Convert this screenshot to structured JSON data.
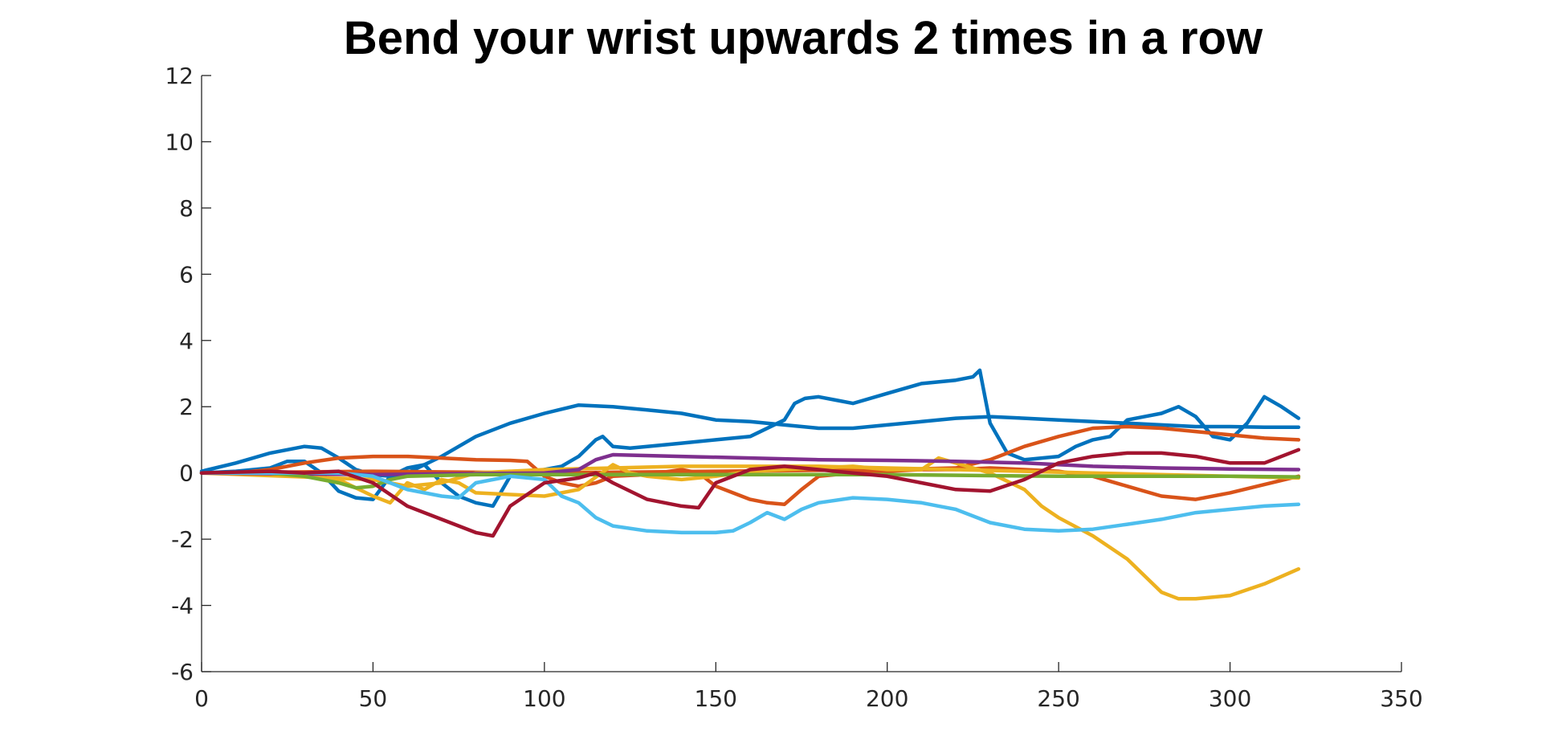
{
  "chart_data": {
    "type": "line",
    "title": "Bend your wrist upwards 2 times in a row",
    "xlabel": "",
    "ylabel": "",
    "xlim": [
      0,
      350
    ],
    "ylim": [
      -6,
      12
    ],
    "xticks": [
      0,
      50,
      100,
      150,
      200,
      250,
      300,
      350
    ],
    "yticks": [
      -6,
      -4,
      -2,
      0,
      2,
      4,
      6,
      8,
      10,
      12
    ],
    "grid": false,
    "legend": "none",
    "series": [
      {
        "color": "#0072BD",
        "x": [
          0,
          10,
          20,
          30,
          35,
          40,
          45,
          50,
          55,
          60,
          70,
          80,
          90,
          100,
          110,
          120,
          130,
          140,
          150,
          160,
          170,
          180,
          190,
          200,
          210,
          220,
          230,
          240,
          250,
          260,
          270,
          280,
          290,
          300,
          310,
          320
        ],
        "y": [
          0.05,
          0.3,
          0.6,
          0.8,
          0.75,
          0.45,
          0.1,
          -0.05,
          -0.1,
          0.0,
          0.5,
          1.1,
          1.5,
          1.8,
          2.05,
          2.0,
          1.9,
          1.8,
          1.6,
          1.55,
          1.45,
          1.35,
          1.35,
          1.45,
          1.55,
          1.65,
          1.7,
          1.65,
          1.6,
          1.55,
          1.5,
          1.45,
          1.4,
          1.4,
          1.38,
          1.38
        ]
      },
      {
        "color": "#0072BD",
        "x": [
          0,
          10,
          20,
          25,
          30,
          35,
          40,
          45,
          50,
          55,
          60,
          65,
          70,
          75,
          80,
          85,
          90,
          95,
          100,
          105,
          110,
          115,
          117,
          120,
          125,
          130,
          140,
          150,
          160,
          170,
          173,
          176,
          180,
          185,
          190,
          200,
          210,
          220,
          225,
          227,
          230,
          235,
          240,
          250,
          255,
          260,
          265,
          270,
          275,
          280,
          285,
          290,
          295,
          300,
          305,
          310,
          315,
          320
        ],
        "y": [
          0.0,
          0.05,
          0.15,
          0.35,
          0.35,
          0.0,
          -0.55,
          -0.75,
          -0.8,
          -0.1,
          0.15,
          0.25,
          -0.3,
          -0.7,
          -0.9,
          -1.0,
          -0.1,
          0.0,
          0.1,
          0.2,
          0.5,
          1.0,
          1.1,
          0.8,
          0.75,
          0.8,
          0.9,
          1.0,
          1.1,
          1.6,
          2.1,
          2.25,
          2.3,
          2.2,
          2.1,
          2.4,
          2.7,
          2.8,
          2.9,
          3.1,
          1.5,
          0.6,
          0.4,
          0.5,
          0.8,
          1.0,
          1.1,
          1.6,
          1.7,
          1.8,
          2.0,
          1.7,
          1.1,
          1.0,
          1.5,
          2.3,
          2.0,
          1.65
        ]
      },
      {
        "color": "#D95319",
        "x": [
          0,
          10,
          20,
          30,
          40,
          50,
          60,
          70,
          80,
          90,
          95,
          100,
          105,
          110,
          115,
          120,
          130,
          140,
          145,
          150,
          155,
          160,
          165,
          170,
          175,
          180,
          190,
          200,
          210,
          220,
          230,
          240,
          250,
          260,
          270,
          280,
          290,
          300,
          310,
          320
        ],
        "y": [
          0.0,
          0.0,
          0.1,
          0.3,
          0.45,
          0.5,
          0.5,
          0.45,
          0.4,
          0.38,
          0.35,
          -0.1,
          -0.3,
          -0.4,
          -0.3,
          -0.1,
          -0.05,
          0.1,
          0.0,
          -0.4,
          -0.6,
          -0.8,
          -0.9,
          -0.95,
          -0.5,
          -0.1,
          0.0,
          0.05,
          0.1,
          0.1,
          0.15,
          0.1,
          0.05,
          -0.1,
          -0.4,
          -0.7,
          -0.8,
          -0.6,
          -0.35,
          -0.1
        ]
      },
      {
        "color": "#D95319",
        "x": [
          0,
          50,
          100,
          150,
          200,
          220,
          230,
          240,
          250,
          260,
          270,
          280,
          290,
          300,
          310,
          320
        ],
        "y": [
          0.0,
          0.05,
          0.0,
          0.05,
          0.1,
          0.15,
          0.4,
          0.8,
          1.1,
          1.35,
          1.4,
          1.35,
          1.25,
          1.15,
          1.05,
          1.0
        ]
      },
      {
        "color": "#EDB120",
        "x": [
          0,
          10,
          20,
          30,
          40,
          50,
          55,
          60,
          65,
          70,
          75,
          80,
          90,
          100,
          110,
          120,
          125,
          130,
          140,
          150,
          160,
          170,
          180,
          190,
          200,
          210,
          215,
          220,
          230,
          240,
          245,
          250,
          260,
          270,
          280,
          285,
          290,
          300,
          310,
          320
        ],
        "y": [
          0.0,
          0.0,
          0.05,
          -0.05,
          -0.2,
          -0.7,
          -0.9,
          -0.3,
          -0.5,
          -0.2,
          -0.3,
          -0.6,
          -0.65,
          -0.7,
          -0.5,
          0.25,
          0.0,
          -0.1,
          -0.2,
          -0.1,
          0.05,
          0.1,
          0.15,
          0.2,
          0.1,
          0.1,
          0.45,
          0.3,
          0.0,
          -0.5,
          -1.0,
          -1.35,
          -1.9,
          -2.6,
          -3.6,
          -3.8,
          -3.8,
          -3.7,
          -3.35,
          -2.9
        ]
      },
      {
        "color": "#EDB120",
        "x": [
          0,
          50,
          60,
          70,
          80,
          100,
          120,
          140,
          160,
          180,
          200,
          220,
          260,
          300,
          320
        ],
        "y": [
          0.0,
          -0.2,
          -0.4,
          -0.3,
          0.0,
          0.1,
          0.15,
          0.2,
          0.2,
          0.2,
          0.15,
          0.1,
          0.0,
          -0.1,
          -0.15
        ]
      },
      {
        "color": "#7E2F8E",
        "x": [
          0,
          50,
          100,
          110,
          115,
          120,
          140,
          160,
          180,
          200,
          220,
          240,
          260,
          280,
          300,
          320
        ],
        "y": [
          0.0,
          -0.05,
          0.0,
          0.1,
          0.4,
          0.55,
          0.5,
          0.45,
          0.4,
          0.38,
          0.35,
          0.3,
          0.2,
          0.15,
          0.12,
          0.1
        ]
      },
      {
        "color": "#77AC30",
        "x": [
          0,
          20,
          30,
          40,
          45,
          50,
          55,
          60,
          80,
          100,
          120,
          150,
          200,
          250,
          300,
          320
        ],
        "y": [
          0.0,
          0.0,
          -0.1,
          -0.3,
          -0.45,
          -0.4,
          -0.2,
          -0.1,
          -0.05,
          -0.05,
          -0.05,
          -0.05,
          -0.05,
          -0.1,
          -0.1,
          -0.12
        ]
      },
      {
        "color": "#4DBEEE",
        "x": [
          0,
          20,
          40,
          50,
          55,
          60,
          70,
          75,
          80,
          90,
          100,
          105,
          110,
          115,
          120,
          130,
          140,
          150,
          155,
          160,
          165,
          170,
          175,
          180,
          190,
          200,
          210,
          215,
          220,
          230,
          240,
          250,
          260,
          270,
          280,
          290,
          300,
          310,
          320
        ],
        "y": [
          0.0,
          0.0,
          0.0,
          -0.1,
          -0.3,
          -0.5,
          -0.7,
          -0.75,
          -0.3,
          -0.1,
          -0.2,
          -0.7,
          -0.9,
          -1.35,
          -1.6,
          -1.75,
          -1.8,
          -1.8,
          -1.75,
          -1.5,
          -1.2,
          -1.4,
          -1.1,
          -0.9,
          -0.75,
          -0.8,
          -0.9,
          -1.0,
          -1.1,
          -1.5,
          -1.7,
          -1.75,
          -1.7,
          -1.55,
          -1.4,
          -1.2,
          -1.1,
          -1.0,
          -0.95
        ]
      },
      {
        "color": "#A2142F",
        "x": [
          0,
          20,
          30,
          40,
          50,
          60,
          70,
          80,
          85,
          90,
          100,
          110,
          115,
          120,
          130,
          140,
          145,
          150,
          160,
          170,
          180,
          190,
          200,
          210,
          220,
          230,
          240,
          250,
          260,
          270,
          280,
          290,
          300,
          310,
          320
        ],
        "y": [
          0.0,
          0.05,
          0.0,
          0.05,
          -0.3,
          -1.0,
          -1.4,
          -1.8,
          -1.9,
          -1.0,
          -0.3,
          -0.15,
          0.0,
          -0.3,
          -0.8,
          -1.0,
          -1.05,
          -0.3,
          0.1,
          0.2,
          0.1,
          0.0,
          -0.1,
          -0.3,
          -0.5,
          -0.55,
          -0.2,
          0.3,
          0.5,
          0.6,
          0.6,
          0.5,
          0.3,
          0.3,
          0.7
        ]
      }
    ]
  }
}
